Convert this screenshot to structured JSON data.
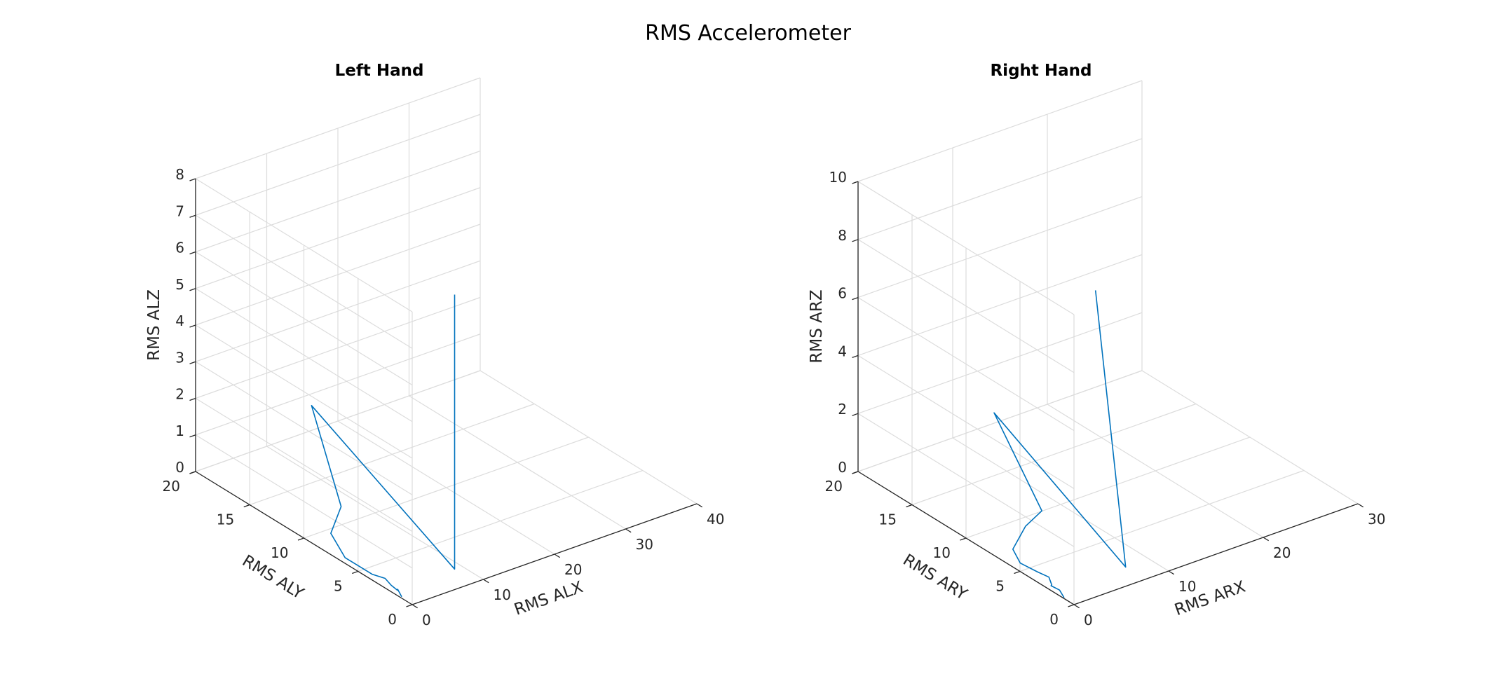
{
  "figure": {
    "title": "RMS Accelerometer"
  },
  "chart_data": [
    {
      "type": "line3d",
      "title": "Left Hand",
      "xlabel": "RMS ALX",
      "ylabel": "RMS ALY",
      "zlabel": "RMS ALZ",
      "xlim": [
        0,
        40
      ],
      "ylim": [
        0,
        20
      ],
      "zlim": [
        0,
        8
      ],
      "xticks": [
        0,
        10,
        20,
        30,
        40
      ],
      "yticks": [
        0,
        5,
        10,
        15,
        20
      ],
      "zticks": [
        0,
        1,
        2,
        3,
        4,
        5,
        6,
        7,
        8
      ],
      "grid": true,
      "color": "#0072BD",
      "points": [
        {
          "x": 0.2,
          "y": 1.1,
          "z": 0.0
        },
        {
          "x": 0.4,
          "y": 1.6,
          "z": 0.1
        },
        {
          "x": 0.5,
          "y": 1.7,
          "z": 0.05
        },
        {
          "x": 0.4,
          "y": 2.2,
          "z": 0.1
        },
        {
          "x": 0.6,
          "y": 2.9,
          "z": 0.15
        },
        {
          "x": 0.3,
          "y": 3.9,
          "z": 0.1
        },
        {
          "x": 0.3,
          "y": 6.4,
          "z": 0.1
        },
        {
          "x": 1.5,
          "y": 8.5,
          "z": 0.3
        },
        {
          "x": 6.3,
          "y": 10.7,
          "z": 0.3
        },
        {
          "x": 6.1,
          "y": 13.3,
          "z": 2.6
        },
        {
          "x": 8.4,
          "y": 1.6,
          "z": 0.1
        },
        {
          "x": 8.4,
          "y": 1.6,
          "z": 7.6
        }
      ]
    },
    {
      "type": "line3d",
      "title": "Right Hand",
      "xlabel": "RMS ARX",
      "ylabel": "RMS ARY",
      "zlabel": "RMS ARZ",
      "xlim": [
        0,
        30
      ],
      "ylim": [
        0,
        20
      ],
      "zlim": [
        0,
        10
      ],
      "xticks": [
        0,
        10,
        20,
        30
      ],
      "yticks": [
        0,
        5,
        10,
        15,
        20
      ],
      "zticks": [
        0,
        2,
        4,
        6,
        8,
        10
      ],
      "grid": true,
      "color": "#0072BD",
      "points": [
        {
          "x": 0.1,
          "y": 1.0,
          "z": 0.0
        },
        {
          "x": 0.3,
          "y": 1.6,
          "z": 0.1
        },
        {
          "x": 0.2,
          "y": 2.3,
          "z": 0.1
        },
        {
          "x": 0.5,
          "y": 2.5,
          "z": 0.05
        },
        {
          "x": 1.0,
          "y": 3.2,
          "z": 0.1
        },
        {
          "x": 0.8,
          "y": 4.1,
          "z": 0.1
        },
        {
          "x": 0.6,
          "y": 5.5,
          "z": 0.1
        },
        {
          "x": 1.3,
          "y": 6.8,
          "z": 0.2
        },
        {
          "x": 4.0,
          "y": 8.0,
          "z": 0.4
        },
        {
          "x": 7.1,
          "y": 9.2,
          "z": 0.3
        },
        {
          "x": 7.3,
          "y": 13.8,
          "z": 2.6
        },
        {
          "x": 6.6,
          "y": 1.0,
          "z": 0.3
        },
        {
          "x": 2.5,
          "y": 0.2,
          "z": 10.5
        }
      ]
    }
  ]
}
